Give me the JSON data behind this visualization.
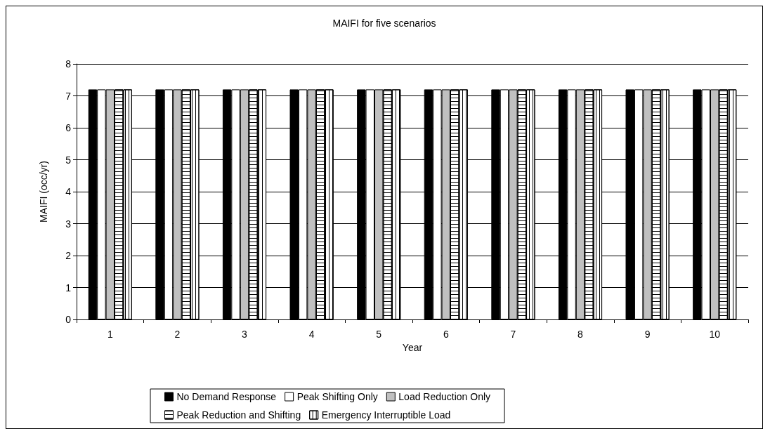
{
  "chart_data": {
    "type": "bar",
    "title": "MAIFI for five scenarios",
    "xlabel": "Year",
    "ylabel": "MAIFI (occ/yr)",
    "categories": [
      "1",
      "2",
      "3",
      "4",
      "5",
      "6",
      "7",
      "8",
      "9",
      "10"
    ],
    "series": [
      {
        "name": "No Demand Response",
        "color": "#000000",
        "values": [
          7.2,
          7.2,
          7.2,
          7.2,
          7.2,
          7.2,
          7.2,
          7.2,
          7.2,
          7.2
        ]
      },
      {
        "name": "Peak Shifting Only",
        "color": "#ffffff",
        "values": [
          7.2,
          7.2,
          7.2,
          7.2,
          7.2,
          7.2,
          7.2,
          7.2,
          7.2,
          7.2
        ]
      },
      {
        "name": "Load Reduction Only",
        "color": "#c0c0c0",
        "values": [
          7.2,
          7.2,
          7.2,
          7.2,
          7.2,
          7.2,
          7.2,
          7.2,
          7.2,
          7.2
        ]
      },
      {
        "name": "Peak Reduction and Shifting",
        "color": "#ffffff",
        "values": [
          7.2,
          7.2,
          7.2,
          7.2,
          7.2,
          7.2,
          7.2,
          7.2,
          7.2,
          7.2
        ]
      },
      {
        "name": "Emergency Interruptible Load",
        "color": "#ffffff",
        "values": [
          7.2,
          7.2,
          7.2,
          7.2,
          7.2,
          7.2,
          7.2,
          7.2,
          7.2,
          7.2
        ]
      }
    ],
    "ylim": [
      0,
      8
    ],
    "yticks": [
      0,
      1,
      2,
      3,
      4,
      5,
      6,
      7,
      8
    ],
    "grid": "y",
    "legend": "bottom"
  }
}
